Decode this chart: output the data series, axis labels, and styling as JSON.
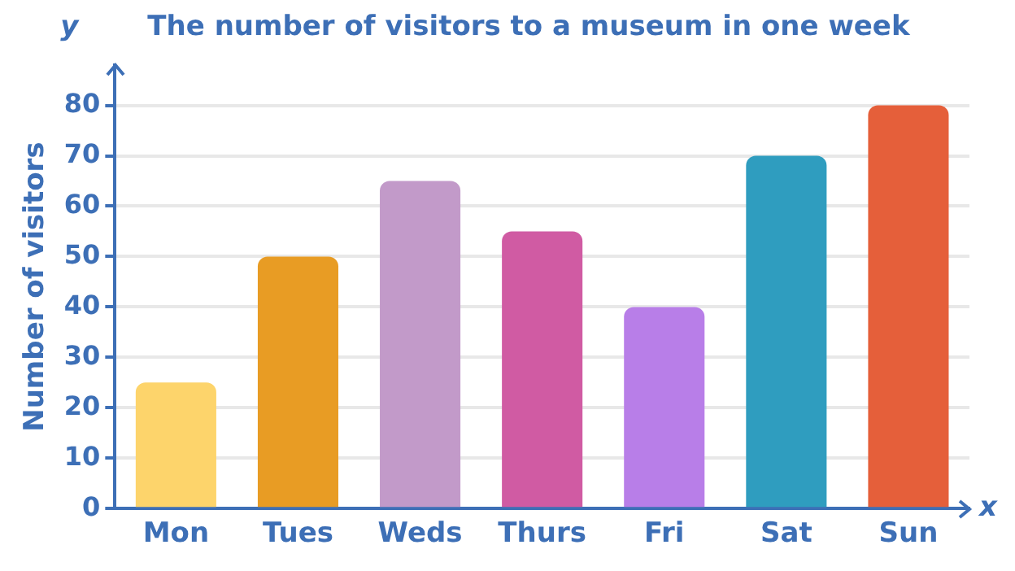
{
  "chart_data": {
    "type": "bar",
    "title": "The number of visitors to a museum in one week",
    "ylabel": "Number of visitors",
    "annotations": [
      "y",
      "x"
    ],
    "categories": [
      "Mon",
      "Tues",
      "Weds",
      "Thurs",
      "Fri",
      "Sat",
      "Sun"
    ],
    "values": [
      25,
      50,
      65,
      55,
      40,
      70,
      80
    ],
    "colors": [
      "#fdd46b",
      "#e89c24",
      "#c29ac9",
      "#d05ba3",
      "#b87ee8",
      "#2f9dbf",
      "#e55f3a"
    ],
    "ylim": [
      0,
      88
    ],
    "yticks": [
      0,
      10,
      20,
      30,
      40,
      50,
      60,
      70,
      80
    ],
    "grid": "y",
    "legend": false
  }
}
